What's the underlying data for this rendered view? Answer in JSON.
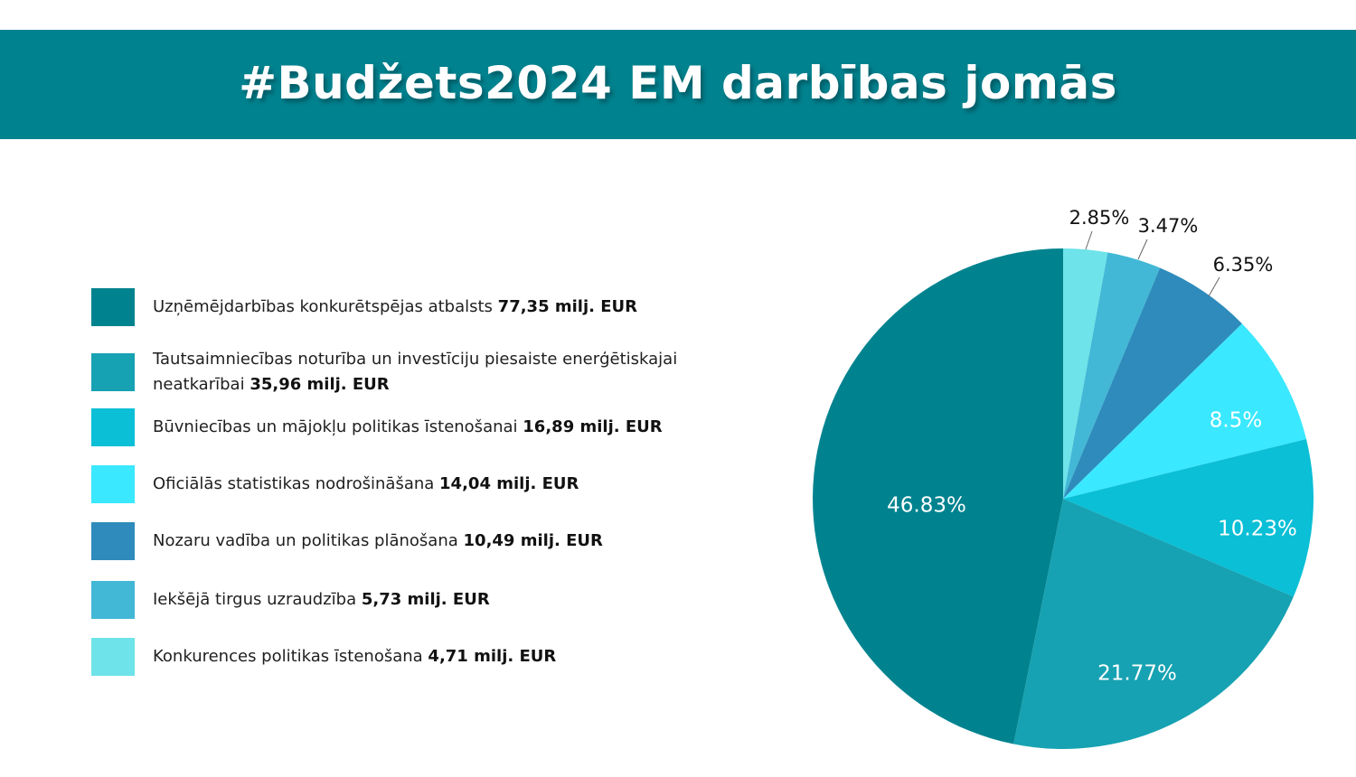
{
  "header": {
    "title": "#Budžets2024 EM darbības jomās"
  },
  "legend": {
    "items": [
      {
        "label": "Uzņēmējdarbības konkurētspējas atbalsts",
        "value": "77,35 milj. EUR",
        "color": "#00838f"
      },
      {
        "label": "Tautsaimniecības noturība un investīciju piesaiste enerģētiskajai neatkarībai",
        "value": "35,96 milj. EUR",
        "color": "#16a2b2"
      },
      {
        "label": "Būvniecības un mājokļu politikas īstenošanai",
        "value": "16,89 milj. EUR",
        "color": "#0abfd6"
      },
      {
        "label": "Oficiālās statistikas nodrošināšana",
        "value": "14,04 milj. EUR",
        "color": "#3ae8ff"
      },
      {
        "label": "Nozaru vadība un politikas plānošana",
        "value": "10,49 milj. EUR",
        "color": "#2e8bbb"
      },
      {
        "label": "Iekšējā tirgus uzraudzība",
        "value": "5,73 milj. EUR",
        "color": "#42b8d6"
      },
      {
        "label": "Konkurences politikas īstenošana",
        "value": "4,71 milj. EUR",
        "color": "#6ee3e9"
      }
    ]
  },
  "chart_data": {
    "type": "pie",
    "title": "#Budžets2024 EM darbības jomās",
    "unit": "milj. EUR",
    "start_angle": "12 o'clock, clockwise",
    "legend_position": "left",
    "categories": [
      "Konkurences politikas īstenošana",
      "Iekšējā tirgus uzraudzība",
      "Nozaru vadība un politikas plānošana",
      "Oficiālās statistikas nodrošināšana",
      "Būvniecības un mājokļu politikas īstenošanai",
      "Tautsaimniecības noturība un investīciju piesaiste enerģētiskajai neatkarībai",
      "Uzņēmējdarbības konkurētspējas atbalsts"
    ],
    "values": [
      4.71,
      5.73,
      10.49,
      14.04,
      16.89,
      35.96,
      77.35
    ],
    "percentages": [
      2.85,
      3.47,
      6.35,
      8.5,
      10.23,
      21.77,
      46.83
    ],
    "labels": [
      "2.85%",
      "3.47%",
      "6.35%",
      "8.5%",
      "10.23%",
      "21.77%",
      "46.83%"
    ],
    "colors": [
      "#6ee3e9",
      "#42b8d6",
      "#2e8bbb",
      "#3ae8ff",
      "#0abfd6",
      "#16a2b2",
      "#00838f"
    ]
  }
}
